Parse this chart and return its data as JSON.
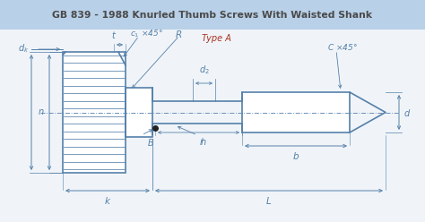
{
  "title": "GB 839 - 1988 Knurled Thumb Screws With Waisted Shank",
  "title_bg": "#b8d0e8",
  "title_color": "#4a4a4a",
  "line_color": "#5580aa",
  "dim_color": "#5580aa",
  "type_a_color": "#aa3322",
  "bg_color": "#f0f4f8"
}
